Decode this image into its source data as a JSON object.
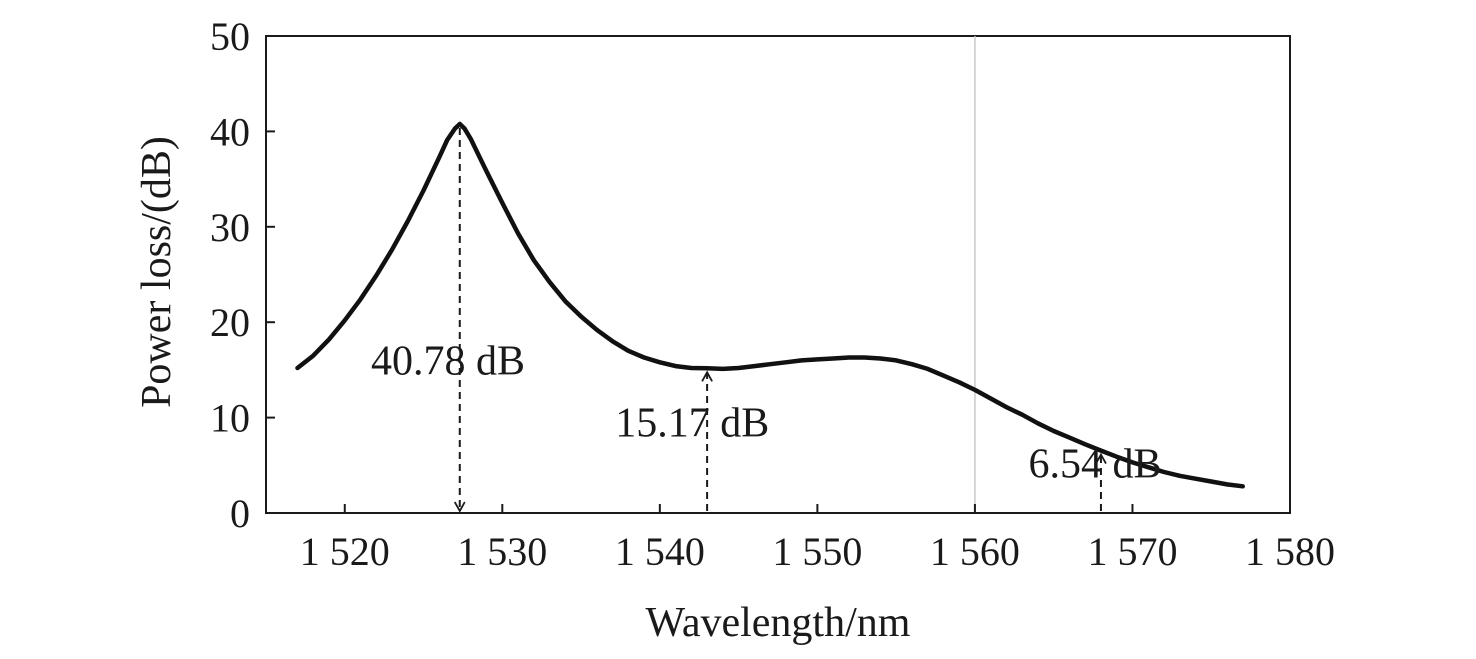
{
  "chart_data": {
    "type": "line",
    "xlabel": "Wavelength/nm",
    "ylabel": "Power loss/(dB)",
    "xlim": [
      1515,
      1580
    ],
    "ylim": [
      0,
      50
    ],
    "x_ticks": [
      1520,
      1530,
      1540,
      1550,
      1560,
      1570,
      1580
    ],
    "x_tick_labels": [
      "1 520",
      "1 530",
      "1 540",
      "1 550",
      "1 560",
      "1 570",
      "1 580"
    ],
    "y_ticks": [
      0,
      10,
      20,
      30,
      40,
      50
    ],
    "y_tick_labels": [
      "0",
      "10",
      "20",
      "30",
      "40",
      "50"
    ],
    "grid": false,
    "reference_lines_x": [
      1560
    ],
    "series": [
      {
        "x": [
          1517,
          1518,
          1519,
          1520,
          1521,
          1522,
          1523,
          1524,
          1525,
          1526,
          1526.5,
          1527,
          1527.3,
          1527.6,
          1528,
          1528.5,
          1529,
          1530,
          1531,
          1532,
          1533,
          1534,
          1535,
          1536,
          1537,
          1538,
          1539,
          1540,
          1541,
          1542,
          1543,
          1544,
          1545,
          1546,
          1547,
          1548,
          1549,
          1550,
          1551,
          1552,
          1553,
          1554,
          1555,
          1556,
          1557,
          1558,
          1559,
          1560,
          1561,
          1562,
          1563,
          1564,
          1565,
          1566,
          1567,
          1568,
          1569,
          1570,
          1571,
          1572,
          1573,
          1574,
          1575,
          1576,
          1577
        ],
        "y": [
          15.2,
          16.5,
          18.2,
          20.2,
          22.4,
          24.9,
          27.6,
          30.6,
          33.8,
          37.3,
          39.1,
          40.3,
          40.78,
          40.3,
          39.2,
          37.5,
          35.8,
          32.5,
          29.3,
          26.5,
          24.2,
          22.2,
          20.6,
          19.2,
          18.0,
          17.0,
          16.3,
          15.8,
          15.4,
          15.2,
          15.17,
          15.1,
          15.2,
          15.4,
          15.6,
          15.8,
          16.0,
          16.1,
          16.2,
          16.3,
          16.3,
          16.2,
          16.0,
          15.6,
          15.1,
          14.4,
          13.7,
          12.9,
          12.0,
          11.1,
          10.3,
          9.4,
          8.6,
          7.9,
          7.2,
          6.54,
          5.9,
          5.3,
          4.8,
          4.3,
          3.9,
          3.6,
          3.3,
          3.0,
          2.8
        ]
      }
    ],
    "annotations": [
      {
        "text": "40.78 dB",
        "x": 1527.3,
        "y": 40.78,
        "text_x": 1527,
        "text_y": 14.5,
        "anchor": "end"
      },
      {
        "text": "15.17 dB",
        "x": 1543,
        "y": 15.17,
        "text_x": 1542.5,
        "text_y": 8,
        "anchor": "end"
      },
      {
        "text": "6.54 dB",
        "x": 1568,
        "y": 6.54,
        "text_x": 1567.4,
        "text_y": 3.7,
        "anchor": "end"
      }
    ]
  }
}
